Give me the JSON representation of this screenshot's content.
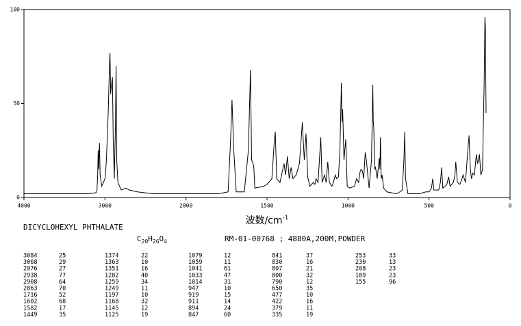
{
  "chart_data": {
    "type": "line",
    "xlabel": "波数/cm",
    "xlabel_sup": "-1",
    "xlim": [
      4000,
      0
    ],
    "xticks": [
      4000,
      3000,
      2000,
      1500,
      1000,
      500,
      0
    ],
    "ylim": [
      0,
      100
    ],
    "yticks": [
      0,
      50,
      100
    ],
    "color": "#000000",
    "x": [
      4000,
      3500,
      3200,
      3120,
      3100,
      3090,
      3084,
      3078,
      3068,
      3060,
      3040,
      3020,
      3000,
      2985,
      2976,
      2960,
      2945,
      2938,
      2930,
      2920,
      2908,
      2898,
      2885,
      2870,
      2863,
      2855,
      2840,
      2800,
      2740,
      2700,
      2600,
      2400,
      2000,
      1800,
      1740,
      1725,
      1716,
      1705,
      1690,
      1640,
      1615,
      1602,
      1595,
      1582,
      1575,
      1520,
      1500,
      1470,
      1455,
      1449,
      1440,
      1420,
      1395,
      1385,
      1374,
      1363,
      1351,
      1340,
      1320,
      1300,
      1290,
      1282,
      1270,
      1259,
      1249,
      1235,
      1215,
      1205,
      1197,
      1185,
      1168,
      1160,
      1145,
      1135,
      1125,
      1115,
      1100,
      1090,
      1079,
      1070,
      1059,
      1050,
      1041,
      1037,
      1033,
      1025,
      1014,
      1005,
      990,
      960,
      947,
      935,
      925,
      919,
      911,
      903,
      894,
      887,
      870,
      855,
      847,
      844,
      841,
      835,
      830,
      820,
      807,
      803,
      800,
      795,
      790,
      780,
      760,
      700,
      680,
      665,
      655,
      650,
      645,
      630,
      560,
      520,
      500,
      485,
      477,
      470,
      440,
      430,
      422,
      415,
      400,
      390,
      379,
      370,
      350,
      340,
      335,
      325,
      310,
      300,
      290,
      275,
      265,
      253,
      245,
      238,
      230,
      220,
      208,
      200,
      189,
      180,
      170,
      160,
      155,
      152,
      148
    ],
    "values": [
      2,
      2,
      2,
      2.5,
      3,
      12,
      25,
      15,
      29,
      12,
      6,
      8,
      10,
      18,
      27,
      45,
      70,
      77,
      55,
      60,
      64,
      30,
      10,
      40,
      70,
      20,
      8,
      4,
      5,
      4,
      3,
      2,
      2,
      2,
      3,
      30,
      52,
      25,
      3,
      3,
      25,
      68,
      20,
      17,
      5,
      6,
      7,
      10,
      30,
      35,
      10,
      8,
      18,
      12,
      22,
      10,
      16,
      10,
      12,
      18,
      30,
      40,
      20,
      34,
      11,
      6,
      8,
      7,
      10,
      8,
      32,
      8,
      12,
      8,
      19,
      8,
      6,
      8,
      12,
      10,
      11,
      25,
      61,
      40,
      47,
      20,
      31,
      6,
      5,
      6,
      10,
      8,
      14,
      15,
      14,
      10,
      24,
      20,
      5,
      20,
      60,
      40,
      37,
      15,
      16,
      10,
      21,
      15,
      32,
      10,
      12,
      5,
      3,
      2,
      3,
      4,
      20,
      35,
      10,
      2,
      2,
      3,
      3,
      5,
      10,
      4,
      4,
      8,
      16,
      5,
      6,
      7,
      11,
      6,
      8,
      12,
      19,
      8,
      7,
      9,
      12,
      8,
      20,
      33,
      15,
      10,
      13,
      12,
      23,
      18,
      23,
      12,
      15,
      60,
      96,
      90,
      45
    ]
  },
  "compound": "DICYCLOHEXYL PHTHALATE",
  "formula": [
    "C",
    "20",
    "H",
    "26",
    "O",
    "4"
  ],
  "record": "RM-01-00768 ; 4880A,200M,POWDER",
  "peak_table": [
    [
      [
        3084,
        25
      ],
      [
        3068,
        29
      ],
      [
        2976,
        27
      ],
      [
        2938,
        77
      ],
      [
        2908,
        64
      ],
      [
        2863,
        70
      ],
      [
        1716,
        52
      ],
      [
        1602,
        68
      ],
      [
        1582,
        17
      ],
      [
        1449,
        35
      ]
    ],
    [
      [
        1374,
        22
      ],
      [
        1363,
        10
      ],
      [
        1351,
        16
      ],
      [
        1282,
        40
      ],
      [
        1259,
        34
      ],
      [
        1249,
        11
      ],
      [
        1197,
        10
      ],
      [
        1168,
        32
      ],
      [
        1145,
        12
      ],
      [
        1125,
        19
      ]
    ],
    [
      [
        1079,
        12
      ],
      [
        1059,
        11
      ],
      [
        1041,
        61
      ],
      [
        1033,
        47
      ],
      [
        1014,
        31
      ],
      [
        947,
        10
      ],
      [
        919,
        15
      ],
      [
        911,
        14
      ],
      [
        894,
        24
      ],
      [
        847,
        60
      ]
    ],
    [
      [
        841,
        37
      ],
      [
        830,
        16
      ],
      [
        807,
        21
      ],
      [
        800,
        32
      ],
      [
        790,
        12
      ],
      [
        650,
        35
      ],
      [
        477,
        10
      ],
      [
        422,
        16
      ],
      [
        379,
        11
      ],
      [
        335,
        19
      ]
    ],
    [
      [
        253,
        33
      ],
      [
        230,
        13
      ],
      [
        208,
        23
      ],
      [
        189,
        23
      ],
      [
        155,
        96
      ]
    ]
  ]
}
